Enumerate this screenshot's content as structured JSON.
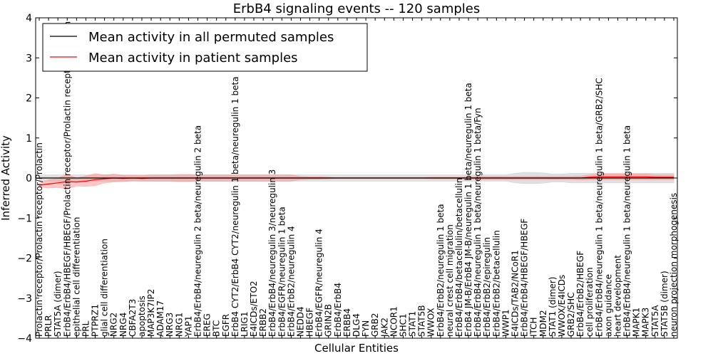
{
  "chart_data": {
    "type": "line",
    "title": "ErbB4 signaling events -- 120 samples",
    "xlabel": "Cellular Entities",
    "ylabel": "Inferred Activity",
    "ylim": [
      -4,
      4
    ],
    "yticks": [
      -4,
      -3,
      -2,
      -1,
      0,
      1,
      2,
      3,
      4
    ],
    "grid": false,
    "legend_position": "top-left",
    "colors": {
      "permuted": "#000000",
      "patient": "#ff0000",
      "patient_band": "#ff8080",
      "permuted_band": "#bbbbbb"
    },
    "categories": [
      "Prolactin receptor/Prolactin receptor/Prolactin",
      "PRLR",
      "STAT5A (dimer)",
      "ErbB4/ErbB4/HBEGF/HBEGF/Prolactin receptor/Prolactin receptor/Prolactin",
      "epithelial cell differentiation",
      "PRL",
      "PTPRZ1",
      "glial cell differentiation",
      "NRG2",
      "NRG4",
      "CBFA2T3",
      "apoptosis",
      "MAP3K7IP2",
      "ADAM17",
      "NRG3",
      "NRG1",
      "YAP1",
      "ErbB4/ErbB4/neuregulin 2 beta/neuregulin 2 beta",
      "EREG",
      "BTC",
      "EGFR",
      "ErbB4 CYT2/ErbB4 CYT2/neuregulin 1 beta/neuregulin 1 beta",
      "LRIG1",
      "E4ICDs/ETO2",
      "ERBB2",
      "ErbB4/ErbB4/neuregulin 3/neuregulin 3",
      "ErbB4/EGFR/neuregulin 1 beta",
      "ErbB4/ErbB2/neuregulin 4",
      "NEDD4",
      "HBEGF",
      "ErbB4/EGFR/neuregulin 4",
      "GRIN2B",
      "ErbB4/ErbB4",
      "ERBB4",
      "DLG4",
      "FYN",
      "GRB2",
      "JAK2",
      "NCOR1",
      "SHC1",
      "STAT1",
      "STAT5B",
      "WWOX",
      "ErbB4/ErbB2/neuregulin 1 beta",
      "neural crest cell migration",
      "ErbB4/ErbB4/betacellulin/betacellulin",
      "ErbB4 JM-B/ErbB4 JM-B/neuregulin 1 beta/neuregulin 1 beta",
      "ErbB4/ErbB4/neuregulin 1 beta/neuregulin 1 beta/Fyn",
      "ErbB4/ErbB2/epiregulin",
      "ErbB4/ErbB2/betacellulin",
      "WWP1",
      "E4ICDs/TAB2/NCoR1",
      "ErbB4/ErbB4/HBEGF/HBEGF",
      "ITCH",
      "MDM2",
      "STAT1 (dimer)",
      "WWOX/E4ICDs",
      "GRB2/SHC",
      "ErbB4/ErbB2/HBEGF",
      "cell proliferation",
      "ErbB4/ErbB4/neuregulin 1 beta/neuregulin 1 beta/GRB2/SHC",
      "axon guidance",
      "heart development",
      "ErbB4/ErbB4/neuregulin 1 beta/neuregulin 1 beta",
      "MAPK1",
      "MAPK3",
      "STAT5A",
      "STAT5B (dimer)",
      "neuron projection morphogenesis"
    ],
    "series": [
      {
        "name": "Mean activity in all permuted samples",
        "values": [
          0,
          0,
          0,
          0,
          0,
          0,
          0,
          0,
          0,
          0,
          0,
          0,
          0,
          0,
          0,
          0,
          0,
          0,
          0,
          0,
          0,
          0,
          0,
          0,
          0,
          0,
          0,
          0,
          0,
          0,
          0,
          0,
          0,
          0,
          0,
          0,
          0,
          0,
          0,
          0,
          0,
          0,
          0,
          0,
          0,
          0,
          0,
          0,
          0,
          0,
          0,
          0,
          0,
          0,
          0,
          0,
          0,
          0,
          0,
          0,
          0,
          0,
          0,
          0,
          0,
          0,
          0,
          0,
          0
        ],
        "band": [
          0.08,
          0.08,
          0.08,
          0.08,
          0.08,
          0.08,
          0.08,
          0.08,
          0.08,
          0.08,
          0.08,
          0.08,
          0.08,
          0.08,
          0.08,
          0.08,
          0.08,
          0.08,
          0.08,
          0.08,
          0.08,
          0.08,
          0.08,
          0.08,
          0.08,
          0.08,
          0.08,
          0.08,
          0.08,
          0.08,
          0.08,
          0.08,
          0.08,
          0.08,
          0.08,
          0.08,
          0.08,
          0.08,
          0.08,
          0.08,
          0.08,
          0.08,
          0.08,
          0.08,
          0.08,
          0.08,
          0.08,
          0.08,
          0.08,
          0.08,
          0.08,
          0.12,
          0.14,
          0.14,
          0.13,
          0.1,
          0.1,
          0.12,
          0.12,
          0.12,
          0.12,
          0.12,
          0.12,
          0.12,
          0.12,
          0.12,
          0.12,
          0.12,
          0.12
        ]
      },
      {
        "name": "Mean activity in patient samples",
        "values": [
          -0.18,
          -0.15,
          -0.12,
          -0.09,
          -0.1,
          -0.08,
          -0.04,
          -0.02,
          0,
          -0.01,
          0,
          -0.01,
          0,
          0,
          0,
          0,
          0,
          0,
          0,
          0,
          0,
          0,
          0,
          0,
          0,
          0,
          0,
          0,
          0,
          0,
          0,
          0,
          0,
          0,
          0,
          0,
          0,
          0,
          0,
          0,
          0,
          0,
          0,
          0,
          0,
          0,
          0,
          0,
          0,
          0,
          0,
          0,
          0,
          0,
          0,
          0,
          0,
          0,
          0,
          0.02,
          0.03,
          0.03,
          0.03,
          0.03,
          0.03,
          0.03,
          0.02,
          0.02,
          0.02
        ],
        "band": [
          0.05,
          0.1,
          0.12,
          0.18,
          0.1,
          0.13,
          0.15,
          0.1,
          0.1,
          0.08,
          0.07,
          0.07,
          0.08,
          0.08,
          0.08,
          0.09,
          0.09,
          0.08,
          0.08,
          0.08,
          0.08,
          0.08,
          0.08,
          0.08,
          0.08,
          0.08,
          0.08,
          0.08,
          0.04,
          0.03,
          0.03,
          0.02,
          0.01,
          0.01,
          0.01,
          0.01,
          0.01,
          0.01,
          0.01,
          0.01,
          0.01,
          0.01,
          0.02,
          0.02,
          0.02,
          0.02,
          0.03,
          0.04,
          0.04,
          0.04,
          0.04,
          0.04,
          0.04,
          0.04,
          0.04,
          0.04,
          0.04,
          0.04,
          0.05,
          0.06,
          0.07,
          0.07,
          0.07,
          0.07,
          0.07,
          0.07,
          0.06,
          0.06,
          0.06
        ]
      }
    ]
  }
}
